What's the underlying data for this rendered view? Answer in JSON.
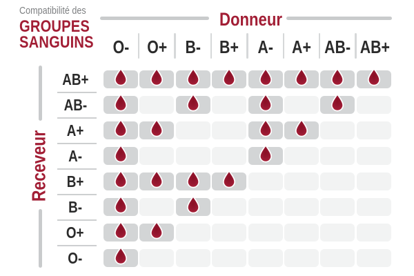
{
  "title": {
    "prefix": "Compatibilité des",
    "line1": "GROUPES",
    "line2": "SANGUINS"
  },
  "donor_axis": {
    "label": "Donneur"
  },
  "receiver_axis": {
    "label": "Receveur"
  },
  "grid": {
    "donor_columns": [
      "O-",
      "O+",
      "B-",
      "B+",
      "A-",
      "A+",
      "AB-",
      "AB+"
    ],
    "receiver_rows": [
      {
        "label": "AB+",
        "compatible_donors": [
          1,
          1,
          1,
          1,
          1,
          1,
          1,
          1
        ]
      },
      {
        "label": "AB-",
        "compatible_donors": [
          1,
          0,
          1,
          0,
          1,
          0,
          1,
          0
        ]
      },
      {
        "label": "A+",
        "compatible_donors": [
          1,
          1,
          0,
          0,
          1,
          1,
          0,
          0
        ]
      },
      {
        "label": "A-",
        "compatible_donors": [
          1,
          0,
          0,
          0,
          1,
          0,
          0,
          0
        ]
      },
      {
        "label": "B+",
        "compatible_donors": [
          1,
          1,
          1,
          1,
          0,
          0,
          0,
          0
        ]
      },
      {
        "label": "B-",
        "compatible_donors": [
          1,
          0,
          1,
          0,
          0,
          0,
          0,
          0
        ]
      },
      {
        "label": "O+",
        "compatible_donors": [
          1,
          1,
          0,
          0,
          0,
          0,
          0,
          0
        ]
      },
      {
        "label": "O-",
        "compatible_donors": [
          1,
          0,
          0,
          0,
          0,
          0,
          0,
          0
        ]
      }
    ],
    "compatible_marker_icon": "blood-drop-icon"
  },
  "colors": {
    "accent_red": "#a21e35",
    "drop_red_center": "#8a0f24",
    "drop_red_edge": "#aa2138",
    "cell_filled_gray": "#d3d5d6",
    "cell_empty_gray": "#f2f3f3",
    "axis_line_gray": "#c9cbcc",
    "label_text": "#2b2b2b",
    "subtitle_gray": "#7d7f81"
  }
}
